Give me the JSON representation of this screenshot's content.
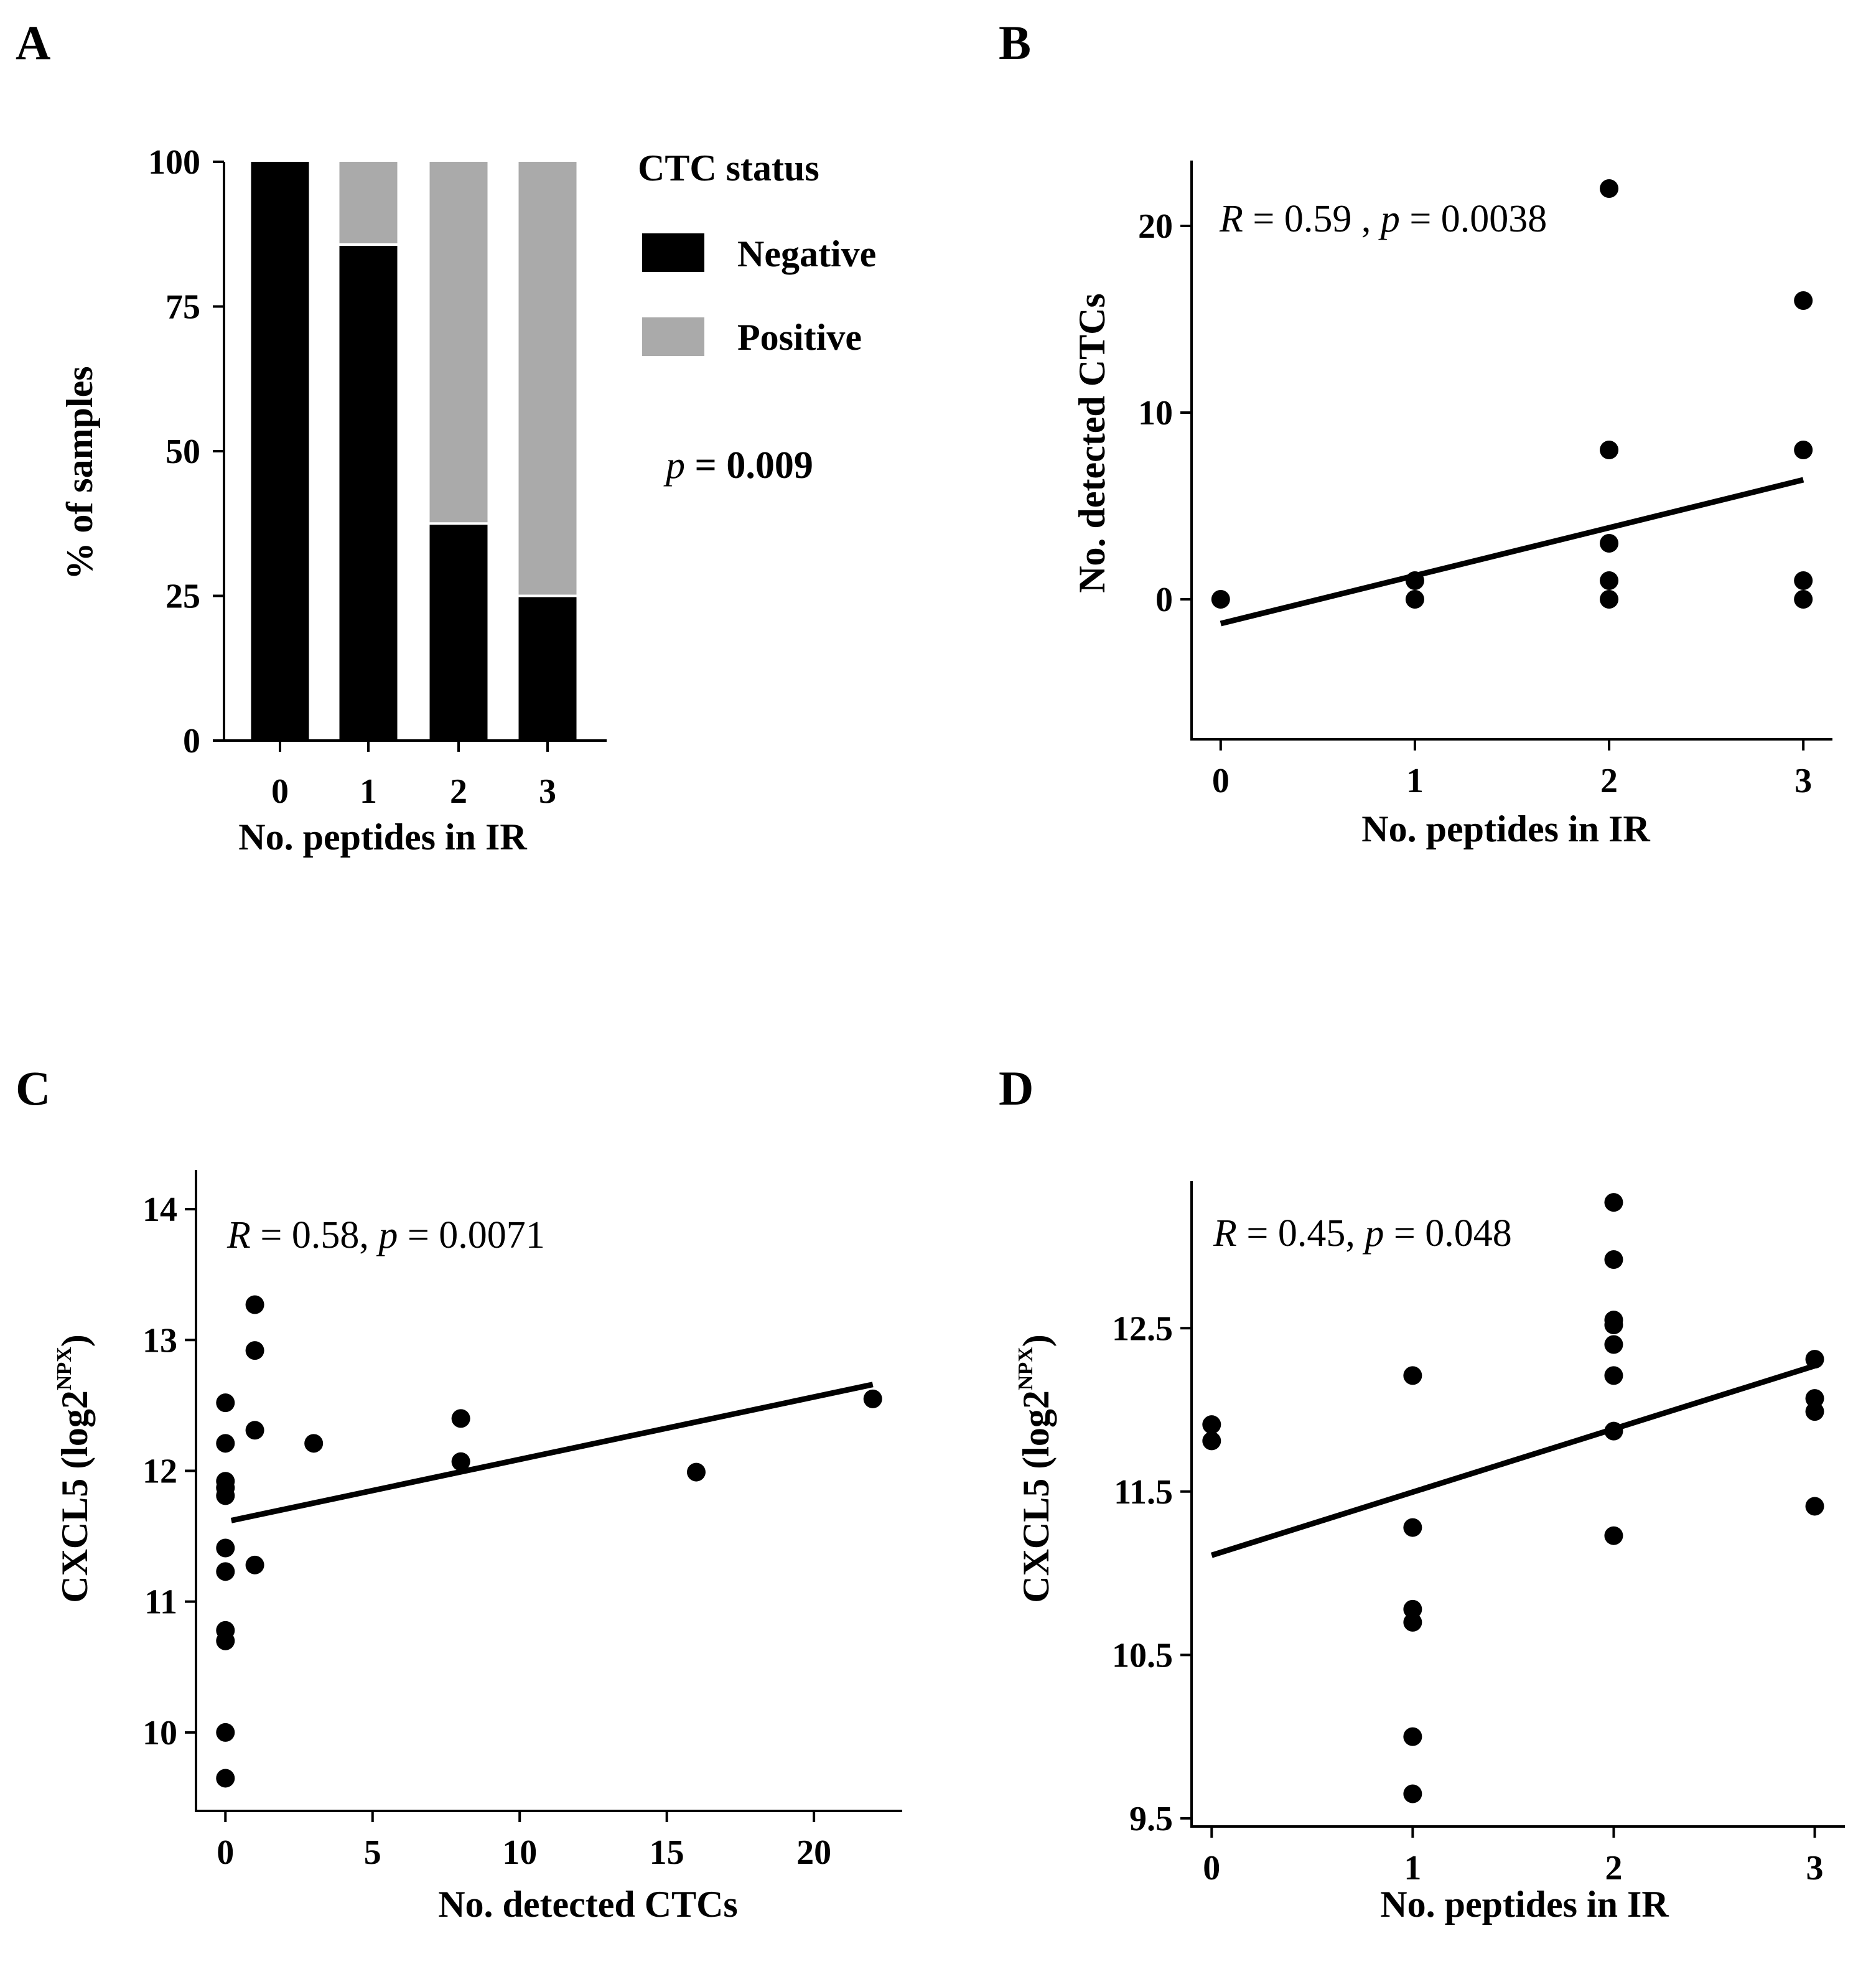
{
  "chart_data": [
    {
      "panel": "A",
      "type": "bar",
      "stacked": true,
      "categories": [
        "0",
        "1",
        "2",
        "3"
      ],
      "series": [
        {
          "name": "Negative",
          "color": "#000000",
          "values": [
            100,
            85.7,
            37.5,
            25
          ]
        },
        {
          "name": "Positive",
          "color": "#aaaaaa",
          "values": [
            0,
            14.3,
            62.5,
            75
          ]
        }
      ],
      "xlabel": "No. peptides in IR",
      "ylabel": "% of samples",
      "ylim": [
        0,
        100
      ],
      "yticks": [
        "0",
        "25",
        "50",
        "75",
        "100"
      ],
      "legend_title": "CTC status",
      "annotation": {
        "italic": "p",
        "rest": " = 0.009"
      }
    },
    {
      "panel": "B",
      "type": "scatter",
      "xlabel": "No. peptides in IR",
      "ylabel": "No. detected  CTCs",
      "xlim": [
        -0.15,
        3.15
      ],
      "ylim": [
        -7.5,
        23.5
      ],
      "xticks": [
        "0",
        "1",
        "2",
        "3"
      ],
      "yticks": [
        "0",
        "10",
        "20"
      ],
      "points": [
        [
          0,
          0
        ],
        [
          1,
          0
        ],
        [
          1,
          1
        ],
        [
          2,
          0
        ],
        [
          2,
          1
        ],
        [
          2,
          3
        ],
        [
          2,
          8
        ],
        [
          2,
          22
        ],
        [
          3,
          0
        ],
        [
          3,
          1
        ],
        [
          3,
          8
        ],
        [
          3,
          16
        ]
      ],
      "fit_line": [
        [
          0,
          -1.3
        ],
        [
          3,
          6.4
        ]
      ],
      "annotation": {
        "r": "R",
        "r_val": " = 0.59 , ",
        "p": "p",
        "p_val": " = 0.0038"
      }
    },
    {
      "panel": "C",
      "type": "scatter",
      "xlabel": "No. detected CTCs",
      "ylabel_main": "CXCL5 (log2",
      "ylabel_sup": "NPX",
      "ylabel_end": ")",
      "xlim": [
        -1,
        23
      ],
      "ylim": [
        9.4,
        14.3
      ],
      "xticks": [
        "0",
        "5",
        "10",
        "15",
        "20"
      ],
      "yticks": [
        "10",
        "11",
        "12",
        "13",
        "14"
      ],
      "points": [
        [
          0,
          12.52
        ],
        [
          0,
          12.21
        ],
        [
          0,
          11.92
        ],
        [
          0,
          11.87
        ],
        [
          0,
          11.81
        ],
        [
          0,
          11.41
        ],
        [
          0,
          11.23
        ],
        [
          0,
          10.78
        ],
        [
          0,
          10.7
        ],
        [
          0,
          10.0
        ],
        [
          0,
          9.65
        ],
        [
          1,
          13.27
        ],
        [
          1,
          12.92
        ],
        [
          1,
          12.31
        ],
        [
          1,
          11.28
        ],
        [
          3,
          12.21
        ],
        [
          8,
          12.4
        ],
        [
          8,
          12.07
        ],
        [
          16,
          11.99
        ],
        [
          22,
          12.55
        ]
      ],
      "fit_line": [
        [
          0.2,
          11.62
        ],
        [
          22,
          12.66
        ]
      ],
      "annotation": {
        "r": "R",
        "r_val": " = 0.58, ",
        "p": "p",
        "p_val": " = 0.0071"
      }
    },
    {
      "panel": "D",
      "type": "scatter",
      "xlabel": "No. peptides in IR",
      "ylabel_main": "CXCL5 (log2",
      "ylabel_sup": "NPX",
      "ylabel_end": ")",
      "xlim": [
        -0.1,
        3.15
      ],
      "ylim": [
        9.45,
        13.4
      ],
      "xticks": [
        "0",
        "1",
        "2",
        "3"
      ],
      "yticks": [
        "9.5",
        "10.5",
        "11.5",
        "12.5"
      ],
      "points": [
        [
          0,
          11.91
        ],
        [
          0,
          11.81
        ],
        [
          1,
          12.21
        ],
        [
          1,
          11.28
        ],
        [
          1,
          10.78
        ],
        [
          1,
          10.7
        ],
        [
          1,
          10.0
        ],
        [
          1,
          9.65
        ],
        [
          2,
          13.27
        ],
        [
          2,
          12.92
        ],
        [
          2,
          12.55
        ],
        [
          2,
          12.52
        ],
        [
          2,
          12.4
        ],
        [
          2,
          12.21
        ],
        [
          2,
          11.87
        ],
        [
          2,
          11.23
        ],
        [
          3,
          12.31
        ],
        [
          3,
          12.07
        ],
        [
          3,
          11.99
        ],
        [
          3,
          11.41
        ]
      ],
      "fit_line": [
        [
          0,
          11.11
        ],
        [
          3,
          12.27
        ]
      ],
      "annotation": {
        "r": "R",
        "r_val": " = 0.45,  ",
        "p": "p",
        "p_val": " = 0.048"
      }
    }
  ]
}
